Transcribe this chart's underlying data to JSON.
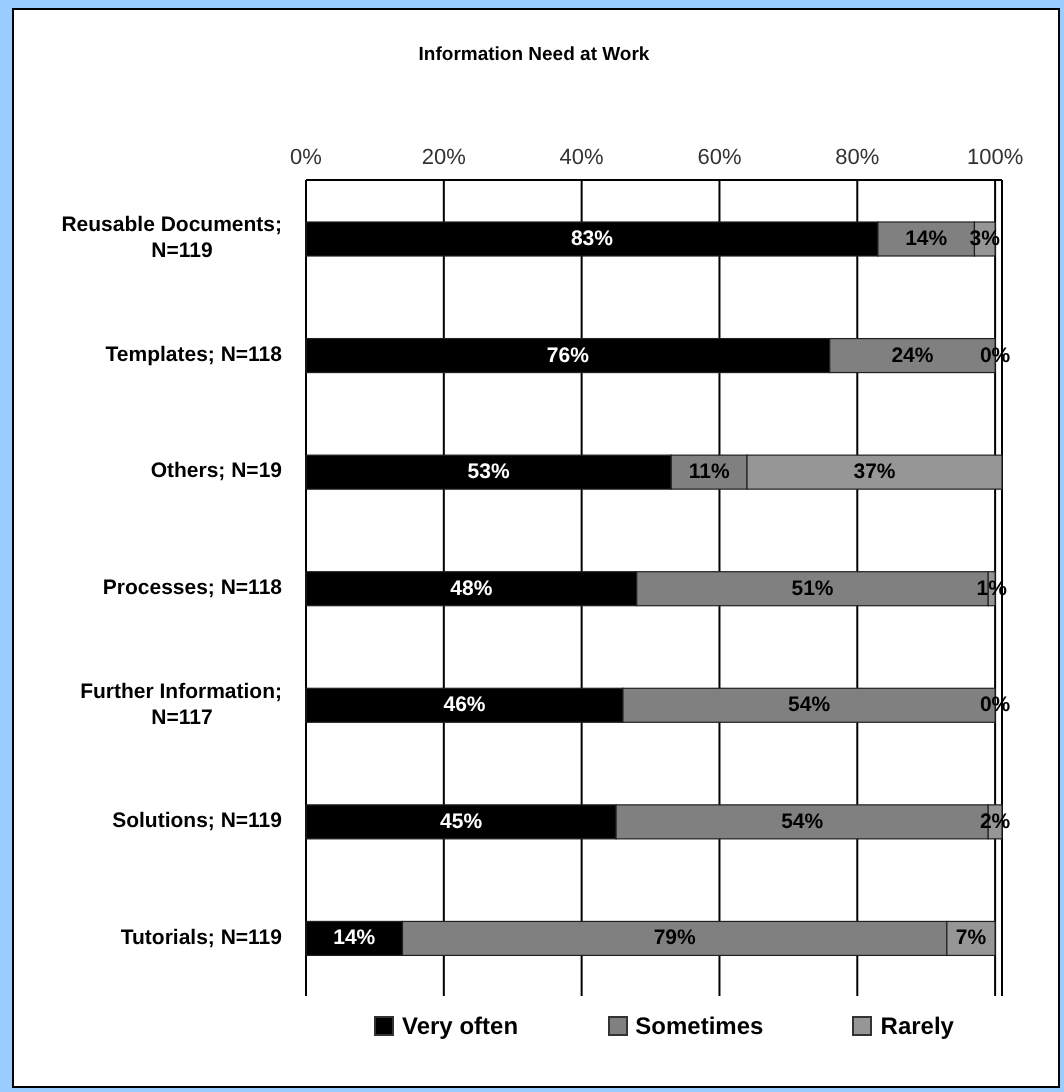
{
  "chart_data": {
    "type": "bar",
    "title": "Information Need at Work",
    "orientation": "horizontal",
    "stacked": true,
    "categories": [
      "Reusable Documents; N=119",
      "Templates; N=118",
      "Others; N=19",
      "Processes; N=118",
      "Further Information; N=117",
      "Solutions; N=119",
      "Tutorials; N=119"
    ],
    "series": [
      {
        "name": "Very often",
        "color": "#000000",
        "values": [
          83,
          76,
          53,
          48,
          46,
          45,
          14
        ],
        "value_labels": [
          "83%",
          "76%",
          "53%",
          "48%",
          "46%",
          "45%",
          "14%"
        ]
      },
      {
        "name": "Sometimes",
        "color": "#808080",
        "values": [
          14,
          24,
          11,
          51,
          54,
          54,
          79
        ],
        "value_labels": [
          "14%",
          "24%",
          "11%",
          "51%",
          "54%",
          "54%",
          "79%"
        ]
      },
      {
        "name": "Rarely",
        "color": "#969696",
        "values": [
          3,
          0,
          37,
          1,
          0,
          2,
          7
        ],
        "value_labels": [
          "3%",
          "0%",
          "37%",
          "1%",
          "0%",
          "2%",
          "7%"
        ]
      }
    ],
    "xlim": [
      0,
      101
    ],
    "xticks": [
      {
        "value": 0,
        "label": "0%"
      },
      {
        "value": 20,
        "label": "20%"
      },
      {
        "value": 40,
        "label": "40%"
      },
      {
        "value": 60,
        "label": "60%"
      },
      {
        "value": 80,
        "label": "80%"
      },
      {
        "value": 100,
        "label": "100%"
      }
    ],
    "grid": "x",
    "legend": "bottom"
  }
}
